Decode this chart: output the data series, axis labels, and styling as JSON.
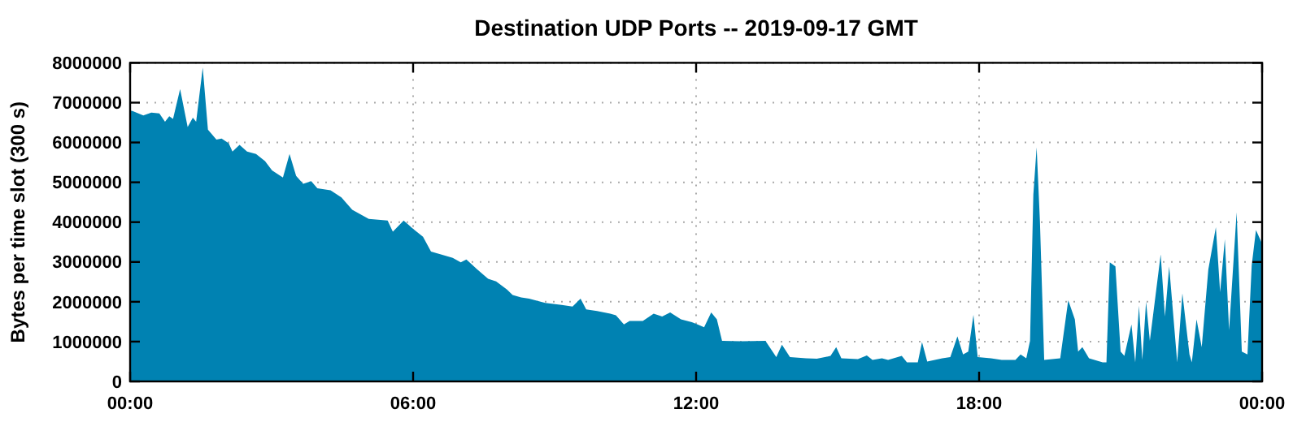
{
  "chart_data": {
    "type": "area",
    "title": "Destination UDP Ports -- 2019-09-17 GMT",
    "ylabel": "Bytes per time slot (300 s)",
    "xlim": [
      0,
      24
    ],
    "xticks": [
      {
        "value": 0,
        "label": "00:00"
      },
      {
        "value": 6,
        "label": "06:00"
      },
      {
        "value": 12,
        "label": "12:00"
      },
      {
        "value": 18,
        "label": "18:00"
      },
      {
        "value": 24,
        "label": "00:00"
      }
    ],
    "ylim": [
      0,
      8000000
    ],
    "yticks": [
      0,
      1000000,
      2000000,
      3000000,
      4000000,
      5000000,
      6000000,
      7000000,
      8000000
    ],
    "grid": true,
    "series": [
      {
        "color": "#0082b2",
        "x": [
          0,
          0.05,
          0.28,
          0.45,
          0.62,
          0.74,
          0.83,
          0.91,
          1.06,
          1.22,
          1.33,
          1.4,
          1.54,
          1.65,
          1.83,
          1.94,
          2.09,
          2.17,
          2.32,
          2.48,
          2.67,
          2.86,
          3.01,
          3.24,
          3.38,
          3.52,
          3.67,
          3.84,
          3.97,
          4.25,
          4.48,
          4.71,
          5.06,
          5.46,
          5.57,
          5.8,
          5.98,
          6.21,
          6.38,
          6.59,
          6.84,
          7.01,
          7.13,
          7.36,
          7.59,
          7.76,
          7.99,
          8.11,
          8.29,
          8.46,
          8.8,
          9.15,
          9.38,
          9.55,
          9.67,
          9.9,
          10.18,
          10.3,
          10.47,
          10.59,
          10.87,
          11.1,
          11.28,
          11.45,
          11.68,
          11.91,
          12.03,
          12.17,
          12.32,
          12.44,
          12.55,
          12.95,
          13.47,
          13.7,
          13.82,
          13.99,
          14.33,
          14.56,
          14.85,
          14.97,
          15.08,
          15.43,
          15.62,
          15.74,
          15.94,
          16.07,
          16.36,
          16.47,
          16.7,
          16.79,
          16.9,
          17.22,
          17.39,
          17.54,
          17.66,
          17.77,
          17.88,
          17.97,
          18.25,
          18.48,
          18.77,
          18.88,
          19,
          19.08,
          19.15,
          19.22,
          19.29,
          19.38,
          19.72,
          19.89,
          20.03,
          20.1,
          20.19,
          20.33,
          20.62,
          20.7,
          20.77,
          20.89,
          21,
          21.08,
          21.23,
          21.31,
          21.39,
          21.46,
          21.54,
          21.62,
          21.85,
          21.94,
          22.03,
          22.2,
          22.31,
          22.46,
          22.51,
          22.61,
          22.72,
          22.86,
          23.02,
          23.11,
          23.21,
          23.3,
          23.46,
          23.57,
          23.69,
          23.78,
          23.87,
          24
        ],
        "values": [
          6800000,
          6790000,
          6680000,
          6750000,
          6730000,
          6520000,
          6660000,
          6590000,
          7340000,
          6390000,
          6620000,
          6520000,
          7880000,
          6320000,
          6070000,
          6100000,
          5980000,
          5770000,
          5940000,
          5770000,
          5710000,
          5530000,
          5300000,
          5120000,
          5710000,
          5160000,
          4960000,
          5030000,
          4850000,
          4800000,
          4620000,
          4310000,
          4080000,
          4040000,
          3760000,
          4040000,
          3850000,
          3630000,
          3260000,
          3190000,
          3100000,
          2990000,
          3060000,
          2810000,
          2580000,
          2510000,
          2310000,
          2170000,
          2110000,
          2080000,
          1970000,
          1920000,
          1880000,
          2080000,
          1810000,
          1770000,
          1700000,
          1660000,
          1430000,
          1520000,
          1520000,
          1700000,
          1630000,
          1730000,
          1560000,
          1490000,
          1430000,
          1360000,
          1730000,
          1560000,
          1020000,
          1010000,
          1020000,
          610000,
          920000,
          610000,
          580000,
          570000,
          640000,
          860000,
          580000,
          560000,
          650000,
          540000,
          580000,
          540000,
          640000,
          480000,
          480000,
          990000,
          500000,
          580000,
          610000,
          1130000,
          680000,
          750000,
          1670000,
          610000,
          580000,
          540000,
          540000,
          680000,
          580000,
          1020000,
          4690000,
          5880000,
          4010000,
          540000,
          580000,
          2040000,
          1560000,
          750000,
          860000,
          580000,
          480000,
          480000,
          2990000,
          2890000,
          750000,
          640000,
          1430000,
          480000,
          1900000,
          540000,
          2000000,
          1020000,
          3190000,
          1630000,
          2890000,
          480000,
          2210000,
          680000,
          480000,
          1560000,
          860000,
          2810000,
          3870000,
          2240000,
          3570000,
          1290000,
          4250000,
          750000,
          680000,
          2920000,
          3800000,
          3460000
        ]
      }
    ]
  }
}
